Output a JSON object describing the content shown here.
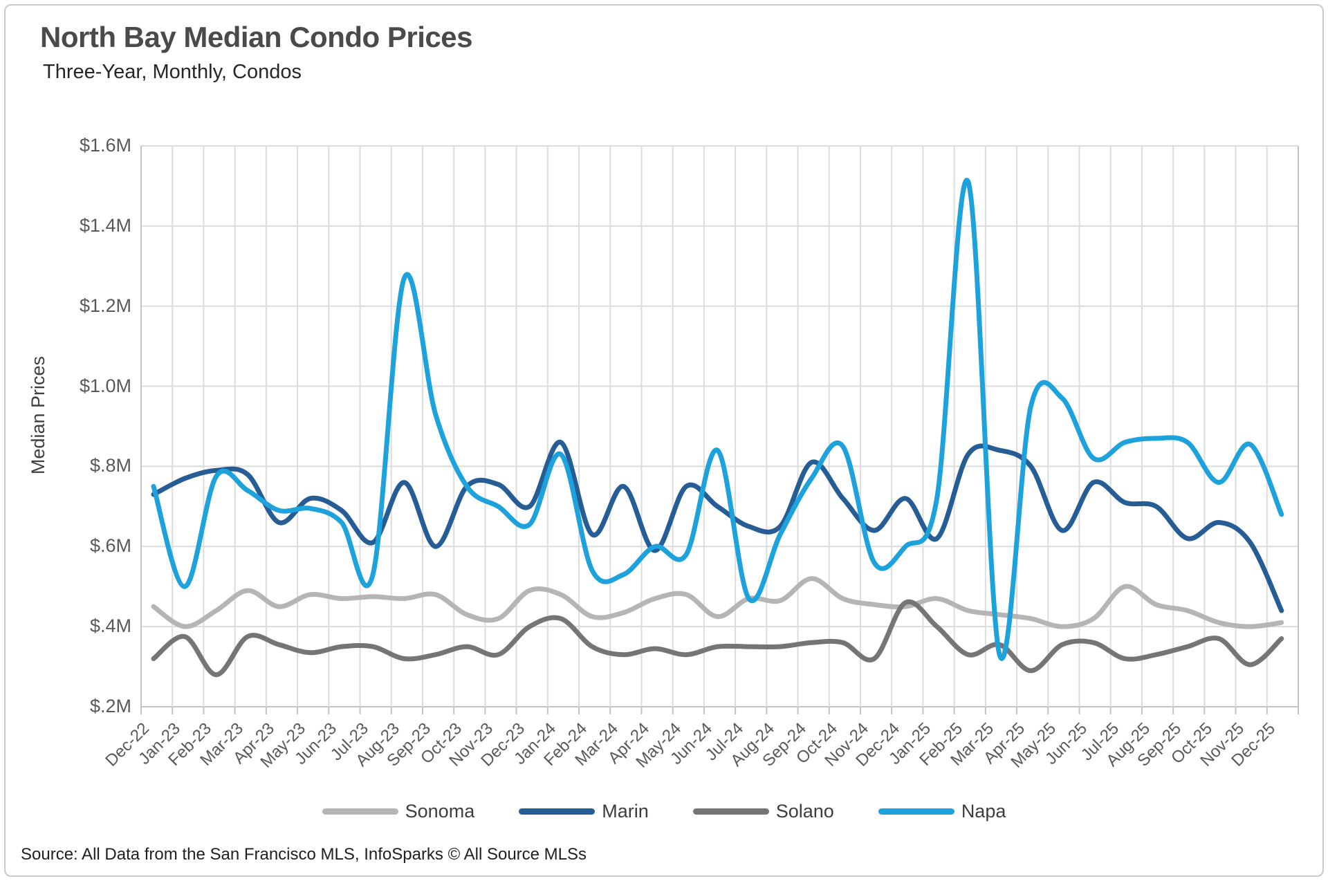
{
  "header": {
    "title": "North Bay Median Condo Prices",
    "subtitle": "Three-Year, Monthly, Condos"
  },
  "chart_data": {
    "type": "line",
    "title": "North Bay Median Condo Prices",
    "subtitle": "Three-Year, Monthly, Condos",
    "ylabel": "Median Prices",
    "xlabel": "",
    "ylim": [
      0.2,
      1.6
    ],
    "ytick_step": 0.2,
    "ytick_labels": [
      "$.2M",
      "$.4M",
      "$.6M",
      "$.8M",
      "$1.0M",
      "$1.2M",
      "$1.4M",
      "$1.6M"
    ],
    "grid": "both",
    "legend_position": "bottom",
    "units": "millions USD",
    "categories": [
      "Dec-22",
      "Jan-23",
      "Feb-23",
      "Mar-23",
      "Apr-23",
      "May-23",
      "Jun-23",
      "Jul-23",
      "Aug-23",
      "Sep-23",
      "Oct-23",
      "Nov-23",
      "Dec-23",
      "Jan-24",
      "Feb-24",
      "Mar-24",
      "Apr-24",
      "May-24",
      "Jun-24",
      "Jul-24",
      "Aug-24",
      "Sep-24",
      "Oct-24",
      "Nov-24",
      "Dec-24",
      "Jan-25",
      "Feb-25",
      "Mar-25",
      "Apr-25",
      "May-25",
      "Jun-25",
      "Jul-25",
      "Aug-25",
      "Sep-25",
      "Oct-25",
      "Nov-25",
      "Dec-25"
    ],
    "series": [
      {
        "name": "Sonoma",
        "color": "#b5b5b5",
        "values": [
          0.45,
          0.4,
          0.44,
          0.49,
          0.45,
          0.48,
          0.47,
          0.475,
          0.47,
          0.48,
          0.43,
          0.42,
          0.49,
          0.48,
          0.425,
          0.435,
          0.47,
          0.48,
          0.425,
          0.47,
          0.465,
          0.52,
          0.47,
          0.455,
          0.45,
          0.47,
          0.44,
          0.43,
          0.42,
          0.4,
          0.42,
          0.5,
          0.455,
          0.44,
          0.41,
          0.4,
          0.41
        ]
      },
      {
        "name": "Marin",
        "color": "#275d95",
        "values": [
          0.73,
          0.77,
          0.79,
          0.78,
          0.66,
          0.72,
          0.69,
          0.61,
          0.76,
          0.6,
          0.75,
          0.755,
          0.7,
          0.86,
          0.63,
          0.75,
          0.59,
          0.75,
          0.7,
          0.65,
          0.65,
          0.81,
          0.72,
          0.64,
          0.72,
          0.62,
          0.83,
          0.84,
          0.8,
          0.64,
          0.76,
          0.71,
          0.7,
          0.62,
          0.66,
          0.61,
          0.44
        ]
      },
      {
        "name": "Solano",
        "color": "#757575",
        "values": [
          0.32,
          0.375,
          0.28,
          0.375,
          0.355,
          0.335,
          0.35,
          0.35,
          0.32,
          0.33,
          0.35,
          0.33,
          0.4,
          0.42,
          0.35,
          0.33,
          0.345,
          0.33,
          0.35,
          0.35,
          0.35,
          0.36,
          0.36,
          0.32,
          0.46,
          0.4,
          0.33,
          0.355,
          0.29,
          0.355,
          0.36,
          0.32,
          0.33,
          0.35,
          0.37,
          0.305,
          0.37
        ]
      },
      {
        "name": "Napa",
        "color": "#1da2dc",
        "values": [
          0.75,
          0.5,
          0.775,
          0.74,
          0.69,
          0.695,
          0.66,
          0.53,
          1.27,
          0.93,
          0.75,
          0.7,
          0.655,
          0.83,
          0.54,
          0.53,
          0.6,
          0.58,
          0.84,
          0.47,
          0.63,
          0.77,
          0.85,
          0.56,
          0.6,
          0.72,
          1.51,
          0.33,
          0.95,
          0.97,
          0.82,
          0.86,
          0.87,
          0.86,
          0.76,
          0.855,
          0.68
        ]
      }
    ]
  },
  "footer": {
    "source": "Source: All Data from the San Francisco MLS, InfoSparks © All Source MLSs"
  }
}
